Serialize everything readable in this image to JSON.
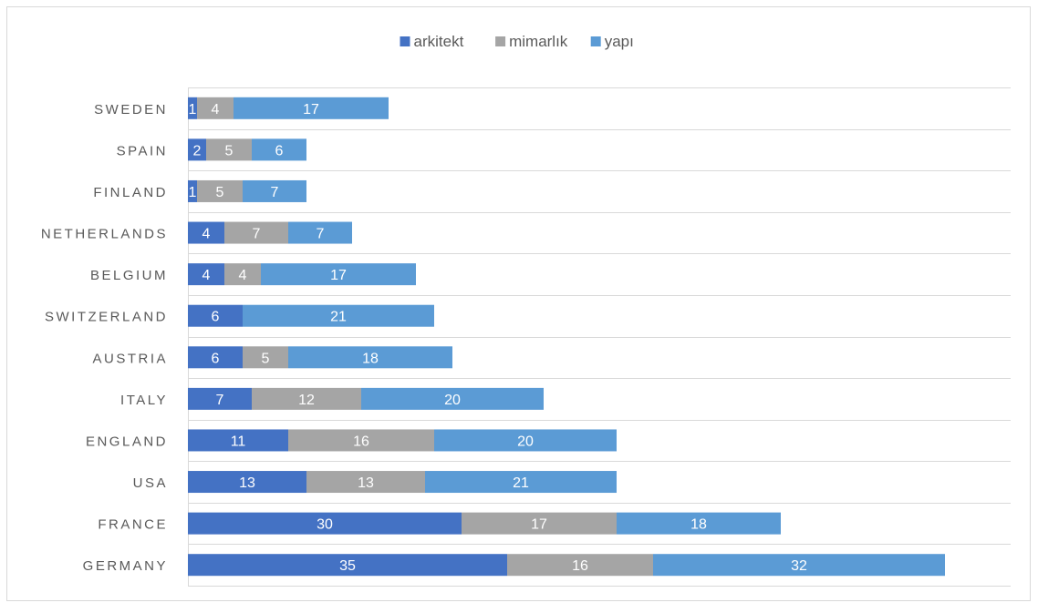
{
  "chart_data": {
    "type": "bar",
    "orientation": "horizontal",
    "stacked": true,
    "title": "",
    "xlabel": "",
    "ylabel": "",
    "xlim": [
      0,
      90
    ],
    "grid": true,
    "legend_position": "top",
    "categories": [
      "GERMANY",
      "FRANCE",
      "USA",
      "ENGLAND",
      "ITALY",
      "AUSTRIA",
      "SWITZERLAND",
      "BELGIUM",
      "NETHERLANDS",
      "FINLAND",
      "SPAIN",
      "SWEDEN"
    ],
    "series": [
      {
        "name": "arkitekt",
        "color": "#4472C4",
        "values": [
          35,
          30,
          13,
          11,
          7,
          6,
          6,
          4,
          4,
          1,
          2,
          1
        ]
      },
      {
        "name": "mimarlık",
        "color": "#A5A5A5",
        "values": [
          16,
          17,
          13,
          16,
          12,
          5,
          0,
          4,
          7,
          5,
          5,
          4
        ]
      },
      {
        "name": "yapı",
        "color": "#5B9BD5",
        "values": [
          32,
          18,
          21,
          20,
          20,
          18,
          21,
          17,
          7,
          7,
          6,
          17
        ]
      }
    ]
  },
  "colors": {
    "gridline": "#d9d9d9",
    "axis_label": "#595959",
    "data_label": "#ffffff",
    "border": "#d9d9d9"
  }
}
